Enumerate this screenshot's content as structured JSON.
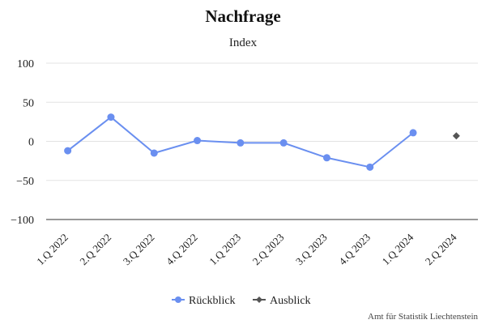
{
  "chart_data": {
    "type": "line",
    "title": "Nachfrage",
    "subtitle": "Index",
    "categories": [
      "1.Q 2022",
      "2.Q 2022",
      "3.Q 2022",
      "4.Q 2022",
      "1.Q 2023",
      "2.Q 2023",
      "3.Q 2023",
      "4.Q 2023",
      "1.Q 2024",
      "2.Q 2024"
    ],
    "yticks": [
      100,
      50,
      0,
      -50,
      -100
    ],
    "ylim": [
      -100,
      100
    ],
    "grid": true,
    "legend_position": "bottom-center",
    "series": [
      {
        "name": "Rückblick",
        "color": "#6a8ff0",
        "marker": "circle",
        "values": [
          -12,
          31,
          -15,
          1,
          -2,
          -2,
          -21,
          -33,
          11,
          null
        ]
      },
      {
        "name": "Ausblick",
        "color": "#555555",
        "marker": "diamond",
        "values": [
          null,
          null,
          null,
          null,
          null,
          null,
          null,
          null,
          null,
          7
        ]
      }
    ],
    "credit": "Amt für Statistik Liechtenstein"
  }
}
